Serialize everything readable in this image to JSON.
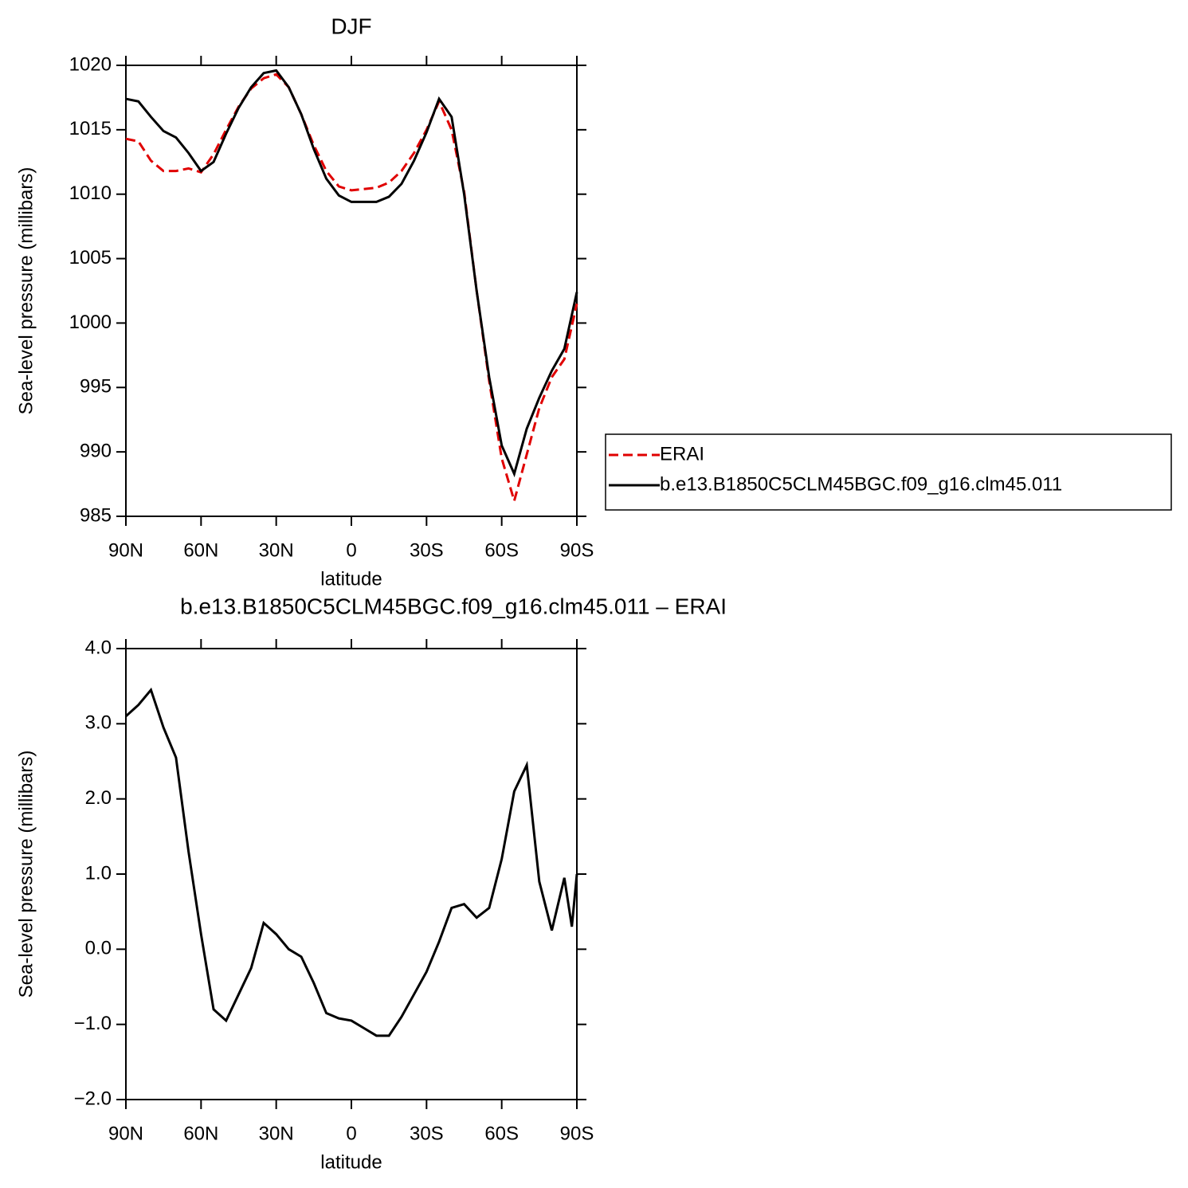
{
  "chart_data": [
    {
      "type": "line",
      "title": "DJF",
      "xlabel": "latitude",
      "ylabel": "Sea-level pressure (millibars)",
      "x": [
        90,
        85,
        80,
        75,
        70,
        65,
        60,
        55,
        50,
        45,
        40,
        35,
        30,
        25,
        20,
        15,
        10,
        5,
        0,
        -5,
        -10,
        -15,
        -20,
        -25,
        -30,
        -35,
        -40,
        -45,
        -50,
        -55,
        -60,
        -65,
        -70,
        -75,
        -80,
        -85,
        -90
      ],
      "series": [
        {
          "name": "ERAI",
          "color": "#e00000",
          "line_style": "dashed",
          "values": [
            1014.3,
            1014.1,
            1012.6,
            1011.8,
            1011.8,
            1012.0,
            1011.7,
            1013.1,
            1015.0,
            1016.8,
            1018.2,
            1019.0,
            1019.3,
            1018.3,
            1016.2,
            1013.8,
            1011.8,
            1010.6,
            1010.3,
            1010.4,
            1010.5,
            1010.9,
            1011.8,
            1013.2,
            1015.0,
            1017.2,
            1015.0,
            1010.2,
            1002.5,
            995.5,
            989.5,
            986.2,
            989.8,
            993.4,
            995.8,
            997.2,
            1001.5
          ]
        },
        {
          "name": "b.e13.B1850C5CLM45BGC.f09_g16.clm45.011",
          "color": "#000000",
          "line_style": "solid",
          "values": [
            1017.4,
            1017.2,
            1016.0,
            1014.9,
            1014.4,
            1013.2,
            1011.8,
            1012.5,
            1014.7,
            1016.7,
            1018.3,
            1019.4,
            1019.6,
            1018.3,
            1016.2,
            1013.5,
            1011.2,
            1009.9,
            1009.4,
            1009.4,
            1009.4,
            1009.8,
            1010.8,
            1012.6,
            1014.8,
            1017.4,
            1016.0,
            1010.0,
            1002.5,
            995.8,
            990.5,
            988.3,
            991.8,
            994.2,
            996.3,
            998.0,
            1002.4
          ]
        }
      ],
      "xlim": [
        90,
        -90
      ],
      "xticks": [
        {
          "value": 90,
          "label": "90N"
        },
        {
          "value": 60,
          "label": "60N"
        },
        {
          "value": 30,
          "label": "30N"
        },
        0,
        {
          "value": -30,
          "label": "30S"
        },
        {
          "value": -60,
          "label": "60S"
        },
        {
          "value": -90,
          "label": "90S"
        }
      ],
      "ylim": [
        985,
        1020
      ],
      "yticks": [
        985,
        990,
        995,
        1000,
        1005,
        1010,
        1015,
        1020
      ],
      "legend": "outside right"
    },
    {
      "type": "line",
      "title": "b.e13.B1850C5CLM45BGC.f09_g16.clm45.011 – ERAI",
      "xlabel": "latitude",
      "ylabel": "Sea-level pressure (millibars)",
      "x": [
        90,
        85,
        80,
        75,
        70,
        65,
        60,
        55,
        50,
        45,
        40,
        35,
        30,
        25,
        20,
        15,
        10,
        5,
        0,
        -5,
        -10,
        -15,
        -20,
        -25,
        -30,
        -35,
        -40,
        -45,
        -50,
        -55,
        -60,
        -65,
        -70,
        -75,
        -80,
        -85,
        -88,
        -90
      ],
      "series": [
        {
          "color": "#000000",
          "line_style": "solid",
          "values": [
            3.1,
            3.25,
            3.45,
            2.95,
            2.55,
            1.3,
            0.2,
            -0.8,
            -0.95,
            -0.6,
            -0.25,
            0.35,
            0.2,
            0.0,
            -0.1,
            -0.45,
            -0.85,
            -0.92,
            -0.95,
            -1.05,
            -1.15,
            -1.15,
            -0.9,
            -0.6,
            -0.3,
            0.1,
            0.55,
            0.6,
            0.42,
            0.55,
            1.2,
            2.1,
            2.45,
            0.9,
            0.25,
            0.95,
            0.3,
            1.0
          ]
        }
      ],
      "xlim": [
        90,
        -90
      ],
      "xticks": [
        {
          "value": 90,
          "label": "90N"
        },
        {
          "value": 60,
          "label": "60N"
        },
        {
          "value": 30,
          "label": "30N"
        },
        0,
        {
          "value": -30,
          "label": "30S"
        },
        {
          "value": -60,
          "label": "60S"
        },
        {
          "value": -90,
          "label": "90S"
        }
      ],
      "ylim": [
        -2,
        4
      ],
      "yticks": [
        {
          "value": -2,
          "label": "−2.0"
        },
        {
          "value": -1,
          "label": "−1.0"
        },
        {
          "value": 0,
          "label": "0.0"
        },
        {
          "value": 1,
          "label": "1.0"
        },
        {
          "value": 2,
          "label": "2.0"
        },
        {
          "value": 3,
          "label": "3.0"
        },
        {
          "value": 4,
          "label": "4.0"
        }
      ]
    }
  ]
}
